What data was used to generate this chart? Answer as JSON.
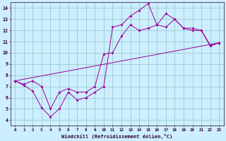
{
  "xlabel": "Windchill (Refroidissement éolien,°C)",
  "background_color": "#cceeff",
  "line_color": "#990099",
  "grid_color": "#99cccc",
  "xlim": [
    -0.5,
    23.5
  ],
  "ylim": [
    3.5,
    14.5
  ],
  "xticks": [
    0,
    1,
    2,
    3,
    4,
    5,
    6,
    7,
    8,
    9,
    10,
    11,
    12,
    13,
    14,
    15,
    16,
    17,
    18,
    19,
    20,
    21,
    22,
    23
  ],
  "yticks": [
    4,
    5,
    6,
    7,
    8,
    9,
    10,
    11,
    12,
    13,
    14
  ],
  "line1_x": [
    0,
    1,
    2,
    3,
    4,
    5,
    6,
    7,
    8,
    9,
    10,
    11,
    12,
    13,
    14,
    15,
    16,
    17,
    18,
    19,
    20,
    21,
    22,
    23
  ],
  "line1_y": [
    7.5,
    7.1,
    6.6,
    5.1,
    4.3,
    5.0,
    6.5,
    5.8,
    6.0,
    6.5,
    7.0,
    12.3,
    12.5,
    13.3,
    13.8,
    14.4,
    12.5,
    13.5,
    13.0,
    12.2,
    12.0,
    12.0,
    10.6,
    10.9
  ],
  "line2_x": [
    0,
    1,
    2,
    3,
    4,
    5,
    6,
    7,
    8,
    9,
    10,
    11,
    12,
    13,
    14,
    15,
    16,
    17,
    18,
    19,
    20,
    21,
    22,
    23
  ],
  "line2_y": [
    7.5,
    7.2,
    7.5,
    7.0,
    5.0,
    6.5,
    6.8,
    6.5,
    6.5,
    7.0,
    9.9,
    10.0,
    11.5,
    12.5,
    12.0,
    12.2,
    12.5,
    12.3,
    13.0,
    12.2,
    12.2,
    12.0,
    10.7,
    10.9
  ],
  "line3_x": [
    0,
    23
  ],
  "line3_y": [
    7.5,
    10.9
  ]
}
